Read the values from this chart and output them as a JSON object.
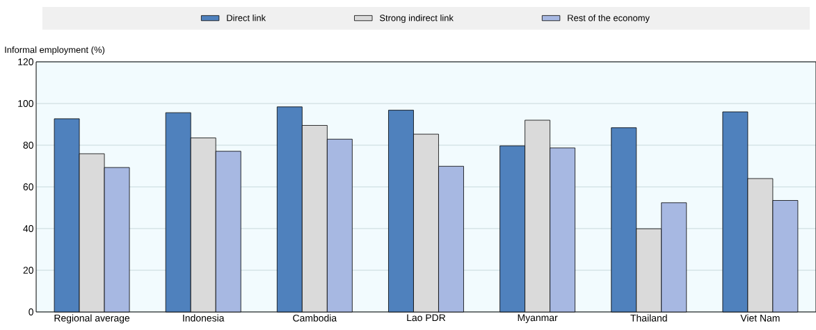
{
  "chart_data": {
    "type": "bar",
    "ylabel": "Informal employment  (%)",
    "categories": [
      "Regional average",
      "Indonesia",
      "Cambodia",
      "Lao PDR",
      "Myanmar",
      "Thailand",
      "Viet Nam"
    ],
    "series": [
      {
        "name": "Direct link",
        "color": "#4f81bd",
        "values": [
          92.7,
          95.6,
          98.4,
          96.8,
          79.7,
          88.4,
          96
        ]
      },
      {
        "name": "Strong indirect link",
        "color": "#dadada",
        "values": [
          75.9,
          83.5,
          89.5,
          85.3,
          92,
          39.9,
          64
        ]
      },
      {
        "name": "Rest of the economy",
        "color": "#a7b8e2",
        "values": [
          69.3,
          77.1,
          82.9,
          69.9,
          78.7,
          52.4,
          53.5
        ]
      }
    ],
    "ylim": [
      0,
      120
    ],
    "yticks": [
      0,
      20,
      40,
      60,
      80,
      100,
      120
    ],
    "grid": "y",
    "legend": "top"
  }
}
